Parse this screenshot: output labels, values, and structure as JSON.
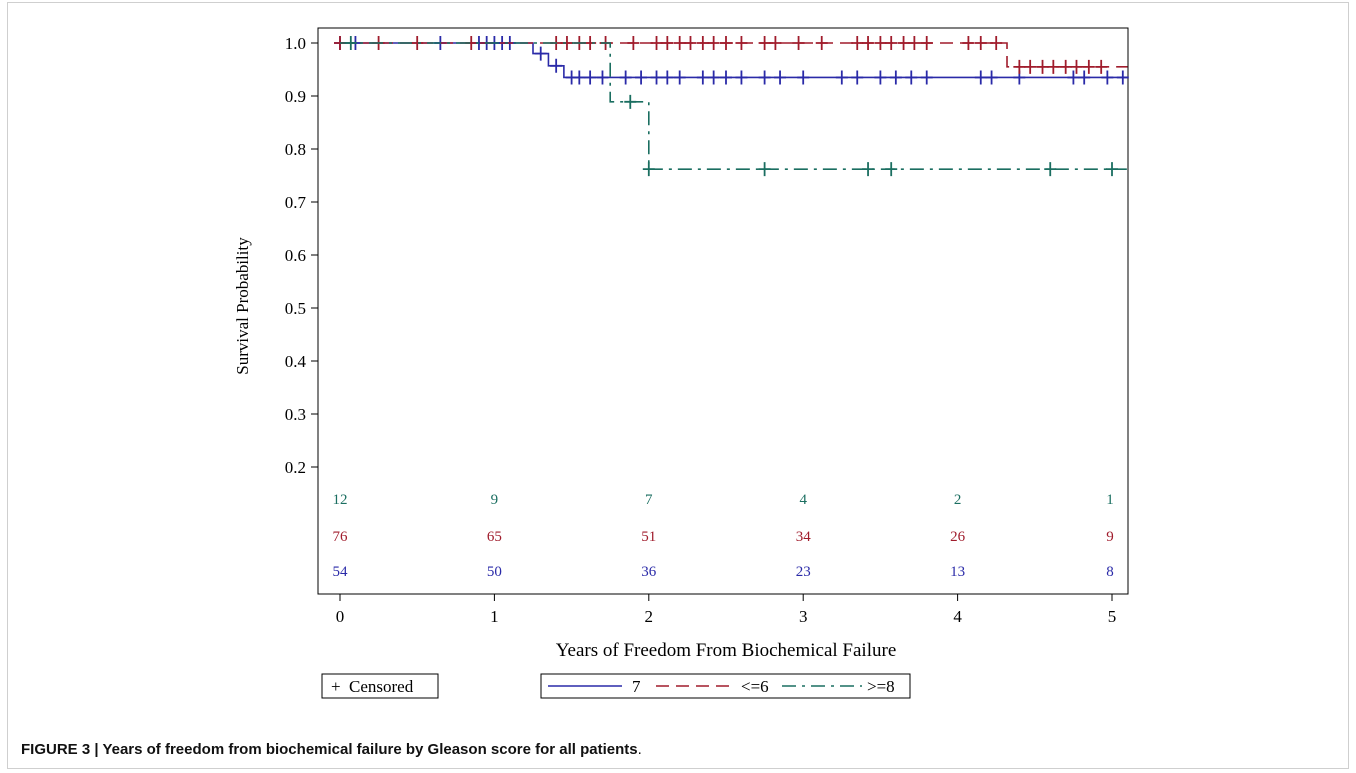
{
  "figure": {
    "caption_label": "FIGURE 3 | Years of freedom from biochemical failure by Gleason score for all patients",
    "caption_end": "."
  },
  "chart_data": {
    "type": "line",
    "subtype": "kaplan-meier step survival curves",
    "xlabel": "Years of Freedom From Biochemical Failure",
    "ylabel": "Survival Probability",
    "xlim": [
      -0.1,
      5.1
    ],
    "ylim": [
      0.15,
      1.01
    ],
    "x_ticks": [
      0,
      1,
      2,
      3,
      4,
      5
    ],
    "x_tick_labels": [
      "0",
      "1",
      "2",
      "3",
      "4",
      "5"
    ],
    "y_ticks": [
      0.2,
      0.3,
      0.4,
      0.5,
      0.6,
      0.7,
      0.8,
      0.9,
      1.0
    ],
    "y_tick_labels": [
      "0.2",
      "0.3",
      "0.4",
      "0.5",
      "0.6",
      "0.7",
      "0.8",
      "0.9",
      "1.0"
    ],
    "grid": false,
    "censor_legend_label": "Censored",
    "censor_symbol": "+",
    "series": [
      {
        "name": "7",
        "color": "#2a2aa8",
        "dash": "solid",
        "steps": [
          [
            0,
            1.0
          ],
          [
            1.25,
            0.98
          ],
          [
            1.35,
            0.957
          ],
          [
            1.45,
            0.935
          ],
          [
            5.1,
            0.935
          ]
        ],
        "censored": [
          [
            0,
            1.0
          ],
          [
            0.1,
            1.0
          ],
          [
            0.65,
            1.0
          ],
          [
            0.9,
            1.0
          ],
          [
            0.95,
            1.0
          ],
          [
            1.0,
            1.0
          ],
          [
            1.05,
            1.0
          ],
          [
            1.1,
            1.0
          ],
          [
            1.3,
            0.98
          ],
          [
            1.4,
            0.957
          ],
          [
            1.5,
            0.935
          ],
          [
            1.55,
            0.935
          ],
          [
            1.62,
            0.935
          ],
          [
            1.7,
            0.935
          ],
          [
            1.85,
            0.935
          ],
          [
            1.95,
            0.935
          ],
          [
            2.05,
            0.935
          ],
          [
            2.12,
            0.935
          ],
          [
            2.2,
            0.935
          ],
          [
            2.35,
            0.935
          ],
          [
            2.42,
            0.935
          ],
          [
            2.5,
            0.935
          ],
          [
            2.6,
            0.935
          ],
          [
            2.75,
            0.935
          ],
          [
            2.85,
            0.935
          ],
          [
            3.0,
            0.935
          ],
          [
            3.25,
            0.935
          ],
          [
            3.35,
            0.935
          ],
          [
            3.5,
            0.935
          ],
          [
            3.6,
            0.935
          ],
          [
            3.7,
            0.935
          ],
          [
            3.8,
            0.935
          ],
          [
            4.15,
            0.935
          ],
          [
            4.22,
            0.935
          ],
          [
            4.4,
            0.935
          ],
          [
            4.75,
            0.935
          ],
          [
            4.82,
            0.935
          ],
          [
            4.97,
            0.935
          ],
          [
            5.07,
            0.935
          ]
        ],
        "at_risk": [
          54,
          50,
          36,
          23,
          13,
          8
        ]
      },
      {
        "name": "<=6",
        "color": "#a01c2c",
        "dash": "long-dash",
        "steps": [
          [
            0,
            1.0
          ],
          [
            4.32,
            1.0
          ],
          [
            4.32,
            0.955
          ],
          [
            5.1,
            0.955
          ]
        ],
        "censored": [
          [
            0,
            1.0
          ],
          [
            0.25,
            1.0
          ],
          [
            0.5,
            1.0
          ],
          [
            0.85,
            1.0
          ],
          [
            1.4,
            1.0
          ],
          [
            1.47,
            1.0
          ],
          [
            1.55,
            1.0
          ],
          [
            1.62,
            1.0
          ],
          [
            1.72,
            1.0
          ],
          [
            1.9,
            1.0
          ],
          [
            2.05,
            1.0
          ],
          [
            2.12,
            1.0
          ],
          [
            2.2,
            1.0
          ],
          [
            2.27,
            1.0
          ],
          [
            2.35,
            1.0
          ],
          [
            2.42,
            1.0
          ],
          [
            2.5,
            1.0
          ],
          [
            2.6,
            1.0
          ],
          [
            2.75,
            1.0
          ],
          [
            2.82,
            1.0
          ],
          [
            2.97,
            1.0
          ],
          [
            3.12,
            1.0
          ],
          [
            3.35,
            1.0
          ],
          [
            3.42,
            1.0
          ],
          [
            3.5,
            1.0
          ],
          [
            3.57,
            1.0
          ],
          [
            3.65,
            1.0
          ],
          [
            3.72,
            1.0
          ],
          [
            3.8,
            1.0
          ],
          [
            4.07,
            1.0
          ],
          [
            4.15,
            1.0
          ],
          [
            4.25,
            1.0
          ],
          [
            4.4,
            0.955
          ],
          [
            4.47,
            0.955
          ],
          [
            4.55,
            0.955
          ],
          [
            4.62,
            0.955
          ],
          [
            4.7,
            0.955
          ],
          [
            4.77,
            0.955
          ],
          [
            4.85,
            0.955
          ],
          [
            4.93,
            0.955
          ]
        ],
        "at_risk": [
          76,
          65,
          51,
          34,
          26,
          9
        ]
      },
      {
        "name": ">=8",
        "color": "#1a6e60",
        "dash": "dash-dot",
        "steps": [
          [
            0,
            1.0
          ],
          [
            1.75,
            1.0
          ],
          [
            1.75,
            0.889
          ],
          [
            2.0,
            0.889
          ],
          [
            2.0,
            0.762
          ],
          [
            5.1,
            0.762
          ]
        ],
        "censored": [
          [
            0.07,
            1.0
          ],
          [
            1.88,
            0.889
          ],
          [
            2.0,
            0.762
          ],
          [
            2.75,
            0.762
          ],
          [
            3.42,
            0.762
          ],
          [
            3.57,
            0.762
          ],
          [
            4.6,
            0.762
          ],
          [
            5.0,
            0.762
          ]
        ],
        "at_risk": [
          12,
          9,
          7,
          4,
          2,
          1
        ]
      }
    ],
    "at_risk_row_order": [
      ">=8",
      "<=6",
      "7"
    ],
    "legend": {
      "placement": "bottom",
      "entries": [
        "7",
        "<=6",
        ">=8"
      ]
    }
  }
}
